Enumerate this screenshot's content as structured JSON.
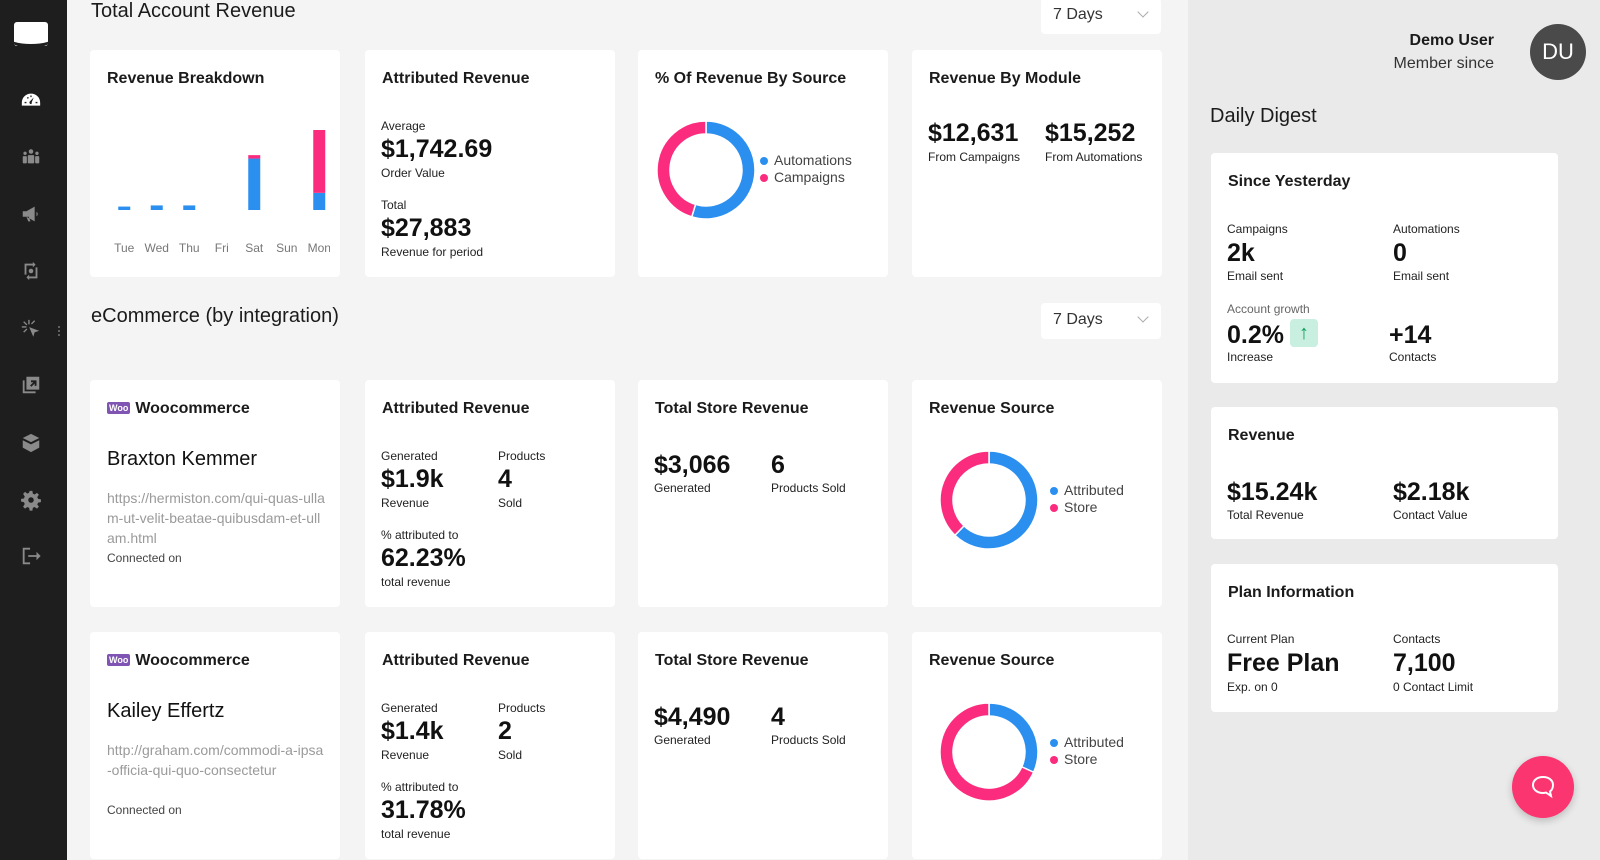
{
  "sidebar": {
    "items": [
      {
        "name": "dashboard",
        "active": true
      },
      {
        "name": "contacts"
      },
      {
        "name": "campaigns"
      },
      {
        "name": "automations"
      },
      {
        "name": "tracking"
      },
      {
        "name": "integrations"
      },
      {
        "name": "products"
      },
      {
        "name": "settings"
      },
      {
        "name": "logout"
      }
    ]
  },
  "account": {
    "title": "Total Account Revenue",
    "period": "7 Days",
    "revenue_breakdown": {
      "title": "Revenue Breakdown"
    },
    "attributed": {
      "title": "Attributed Revenue",
      "avg_label": "Average",
      "avg_value": "$1,742.69",
      "avg_sub": "Order Value",
      "total_label": "Total",
      "total_value": "$27,883",
      "total_sub": "Revenue for period"
    },
    "by_source": {
      "title": "% Of Revenue By Source",
      "legend": [
        "Automations",
        "Campaigns"
      ]
    },
    "by_module": {
      "title": "Revenue By Module",
      "campaigns_value": "$12,631",
      "campaigns_label": "From Campaigns",
      "automations_value": "$15,252",
      "automations_label": "From Automations"
    }
  },
  "ecommerce": {
    "title": "eCommerce (by integration)",
    "period": "7 Days",
    "stores": [
      {
        "platform": "Woocommerce",
        "badge": "Woo",
        "name": "Braxton Kemmer",
        "url": "https://hermiston.com/qui-quas-ullam-ut-velit-beatae-quibusdam-et-ullam.html",
        "connected": "Connected on",
        "attributed": {
          "title": "Attributed Revenue",
          "generated_label": "Generated",
          "generated_value": "$1.9k",
          "generated_sub": "Revenue",
          "products_label": "Products",
          "products_value": "4",
          "products_sub": "Sold",
          "pct_label": "% attributed to",
          "pct_value": "62.23%",
          "pct_sub": "total revenue"
        },
        "total": {
          "title": "Total Store Revenue",
          "generated_value": "$3,066",
          "generated_label": "Generated",
          "sold_value": "6",
          "sold_label": "Products Sold"
        },
        "source": {
          "title": "Revenue Source",
          "legend": [
            "Attributed",
            "Store"
          ]
        }
      },
      {
        "platform": "Woocommerce",
        "badge": "Woo",
        "name": "Kailey Effertz",
        "url": "http://graham.com/commodi-a-ipsa-officia-qui-quo-consectetur",
        "connected": "Connected on",
        "attributed": {
          "title": "Attributed Revenue",
          "generated_label": "Generated",
          "generated_value": "$1.4k",
          "generated_sub": "Revenue",
          "products_label": "Products",
          "products_value": "2",
          "products_sub": "Sold",
          "pct_label": "% attributed to",
          "pct_value": "31.78%",
          "pct_sub": "total revenue"
        },
        "total": {
          "title": "Total Store Revenue",
          "generated_value": "$4,490",
          "generated_label": "Generated",
          "sold_value": "4",
          "sold_label": "Products Sold"
        },
        "source": {
          "title": "Revenue Source",
          "legend": [
            "Attributed",
            "Store"
          ]
        }
      }
    ]
  },
  "user": {
    "name": "Demo User",
    "since": "Member since",
    "initials": "DU"
  },
  "digest": {
    "title": "Daily Digest",
    "since_yesterday": {
      "title": "Since Yesterday",
      "campaigns_label": "Campaigns",
      "campaigns_value": "2k",
      "campaigns_sub": "Email sent",
      "automations_label": "Automations",
      "automations_value": "0",
      "automations_sub": "Email sent",
      "growth_label": "Account growth",
      "growth_value": "0.2%",
      "growth_sub": "Increase",
      "contacts_value": "+14",
      "contacts_sub": "Contacts"
    },
    "revenue": {
      "title": "Revenue",
      "total_value": "$15.24k",
      "total_label": "Total Revenue",
      "contact_value": "$2.18k",
      "contact_label": "Contact Value"
    },
    "plan": {
      "title": "Plan Information",
      "plan_label": "Current Plan",
      "plan_value": "Free Plan",
      "plan_sub": "Exp. on 0",
      "contacts_label": "Contacts",
      "contacts_value": "7,100",
      "contacts_sub": "0 Contact Limit"
    }
  },
  "colors": {
    "blue": "#2b8ff0",
    "pink": "#fb2c7e",
    "chat": "#fb3570"
  },
  "chart_data": [
    {
      "type": "bar",
      "title": "Revenue Breakdown",
      "stacked": true,
      "categories": [
        "Tue",
        "Wed",
        "Thu",
        "Fri",
        "Sat",
        "Sun",
        "Mon"
      ],
      "series": [
        {
          "name": "Automations",
          "color": "#2b8ff0",
          "values": [
            0.3,
            0.4,
            0.4,
            0,
            4.5,
            0,
            1.5
          ]
        },
        {
          "name": "Campaigns",
          "color": "#fb2c7e",
          "values": [
            0,
            0,
            0,
            0,
            0.3,
            0,
            5.5
          ]
        }
      ],
      "ylim": [
        0,
        7
      ]
    },
    {
      "type": "pie",
      "title": "% Of Revenue By Source",
      "labels": [
        "Automations",
        "Campaigns"
      ],
      "values": [
        54.7,
        45.3
      ],
      "colors": [
        "#2b8ff0",
        "#fb2c7e"
      ]
    },
    {
      "type": "pie",
      "title": "Revenue Source",
      "labels": [
        "Attributed",
        "Store"
      ],
      "values": [
        62.23,
        37.77
      ],
      "colors": [
        "#2b8ff0",
        "#fb2c7e"
      ]
    },
    {
      "type": "pie",
      "title": "Revenue Source",
      "labels": [
        "Attributed",
        "Store"
      ],
      "values": [
        31.78,
        68.22
      ],
      "colors": [
        "#2b8ff0",
        "#fb2c7e"
      ]
    }
  ]
}
